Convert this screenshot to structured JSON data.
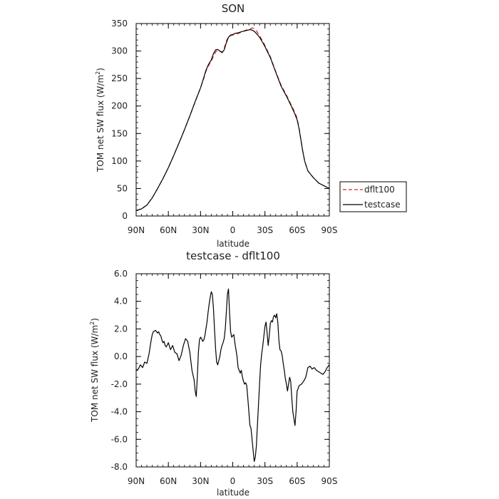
{
  "chart_data": [
    {
      "type": "line",
      "title": "SON",
      "xlabel": "latitude",
      "ylabel": "TOM net SW flux (W/m²)",
      "xlim": [
        -90,
        90
      ],
      "ylim": [
        0,
        350
      ],
      "xticks": [
        -90,
        -60,
        -30,
        0,
        30,
        60,
        90
      ],
      "xtick_labels": [
        "90N",
        "60N",
        "30N",
        "0",
        "30S",
        "60S",
        "90S"
      ],
      "yticks": [
        0,
        50,
        100,
        150,
        200,
        250,
        300,
        350
      ],
      "ytick_labels": [
        "0",
        "50",
        "100",
        "150",
        "200",
        "250",
        "300",
        "350"
      ],
      "legend": {
        "placement": "right",
        "entries": [
          {
            "label": "dflt100",
            "color": "#d62728",
            "dash": "dashed"
          },
          {
            "label": "testcase",
            "color": "#000000",
            "dash": "solid"
          }
        ]
      },
      "series": [
        {
          "name": "dflt100",
          "color": "#d62728",
          "dash": "dashed",
          "x": [
            -90,
            -85,
            -80,
            -75,
            -70,
            -65,
            -60,
            -55,
            -50,
            -45,
            -40,
            -35,
            -30,
            -27,
            -25,
            -23,
            -20,
            -18,
            -16,
            -14,
            -12,
            -10,
            -8,
            -6,
            -4,
            -2,
            0,
            2,
            5,
            8,
            10,
            12,
            14,
            16,
            18,
            20,
            22,
            25,
            28,
            30,
            35,
            40,
            45,
            50,
            55,
            58,
            60,
            62,
            65,
            67,
            70,
            75,
            80,
            85,
            90
          ],
          "y": [
            10,
            13,
            20,
            33,
            50,
            68,
            88,
            110,
            133,
            157,
            182,
            208,
            233,
            250,
            263,
            272,
            282,
            290,
            298,
            302,
            300,
            298,
            305,
            318,
            326,
            328,
            329,
            330,
            332,
            334,
            336,
            338,
            339,
            340,
            342,
            341,
            337,
            328,
            318,
            310,
            290,
            263,
            238,
            220,
            200,
            188,
            178,
            158,
            120,
            100,
            82,
            70,
            60,
            55,
            50
          ]
        },
        {
          "name": "testcase",
          "color": "#000000",
          "dash": "solid",
          "x": [
            -90,
            -85,
            -80,
            -75,
            -70,
            -65,
            -60,
            -55,
            -50,
            -45,
            -40,
            -35,
            -30,
            -27,
            -25,
            -23,
            -20,
            -18,
            -16,
            -14,
            -12,
            -10,
            -8,
            -6,
            -4,
            -2,
            0,
            2,
            5,
            8,
            10,
            12,
            14,
            16,
            18,
            20,
            22,
            25,
            28,
            30,
            35,
            40,
            45,
            50,
            55,
            58,
            60,
            62,
            65,
            67,
            70,
            75,
            80,
            85,
            90
          ],
          "y": [
            10,
            13,
            20,
            33,
            50,
            68,
            88,
            110,
            133,
            157,
            182,
            208,
            233,
            252,
            265,
            274,
            284,
            295,
            302,
            303,
            300,
            297,
            302,
            315,
            325,
            329,
            330,
            332,
            333,
            335,
            336,
            337,
            338,
            339,
            338,
            336,
            332,
            325,
            315,
            308,
            288,
            262,
            236,
            218,
            198,
            185,
            175,
            157,
            120,
            100,
            82,
            70,
            60,
            55,
            50
          ]
        }
      ]
    },
    {
      "type": "line",
      "title": "testcase - dflt100",
      "xlabel": "latitude",
      "ylabel": "TOM net SW flux (W/m²)",
      "xlim": [
        -90,
        90
      ],
      "ylim": [
        -8,
        6
      ],
      "xticks": [
        -90,
        -60,
        -30,
        0,
        30,
        60,
        90
      ],
      "xtick_labels": [
        "90N",
        "60N",
        "30N",
        "0",
        "30S",
        "60S",
        "90S"
      ],
      "yticks": [
        -8,
        -6,
        -4,
        -2,
        0,
        2,
        4,
        6
      ],
      "ytick_labels": [
        "-8.0",
        "-6.0",
        "-4.0",
        "-2.0",
        "0.0",
        "2.0",
        "4.0",
        "6.0"
      ],
      "series": [
        {
          "color": "#000000",
          "dash": "solid",
          "x": [
            -90,
            -88,
            -86,
            -84,
            -82,
            -80,
            -78,
            -76,
            -75,
            -74,
            -72,
            -71,
            -70,
            -69,
            -68,
            -67,
            -66,
            -65,
            -64,
            -63,
            -62,
            -60,
            -58,
            -56,
            -54,
            -52,
            -50,
            -48,
            -46,
            -44,
            -42,
            -40,
            -38,
            -36,
            -35,
            -34,
            -33,
            -32,
            -31,
            -30,
            -29,
            -28,
            -27,
            -26,
            -25,
            -24,
            -23,
            -22,
            -21,
            -20,
            -19,
            -18,
            -17,
            -16,
            -15,
            -14,
            -13,
            -12,
            -11,
            -10,
            -9,
            -8,
            -7,
            -6,
            -5,
            -4,
            -3,
            -2,
            -1,
            0,
            1,
            2,
            3,
            4,
            5,
            6,
            7,
            8,
            9,
            10,
            11,
            12,
            13,
            14,
            15,
            16,
            17,
            18,
            19,
            20,
            21,
            22,
            23,
            24,
            25,
            26,
            27,
            28,
            29,
            30,
            31,
            32,
            33,
            34,
            35,
            36,
            37,
            38,
            39,
            40,
            41,
            42,
            43,
            44,
            45,
            46,
            47,
            48,
            49,
            50,
            51,
            52,
            53,
            54,
            55,
            56,
            57,
            58,
            59,
            60,
            62,
            64,
            66,
            68,
            70,
            72,
            74,
            76,
            78,
            80,
            82,
            84,
            86,
            88,
            90
          ],
          "y": [
            -1.0,
            -0.9,
            -0.6,
            -0.8,
            -0.4,
            -0.5,
            0.2,
            1.2,
            1.6,
            1.8,
            1.9,
            1.8,
            1.7,
            1.8,
            1.6,
            1.5,
            1.2,
            1.0,
            1.1,
            0.8,
            0.7,
            1.0,
            0.5,
            0.8,
            0.3,
            0.2,
            -0.3,
            0.1,
            0.8,
            1.3,
            1.1,
            0.3,
            -1.0,
            -1.7,
            -2.5,
            -2.9,
            -1.5,
            0.3,
            1.2,
            1.4,
            1.3,
            1.1,
            1.2,
            1.5,
            2.0,
            2.5,
            3.2,
            3.8,
            4.3,
            4.7,
            4.5,
            3.5,
            2.0,
            0.6,
            -0.4,
            -0.6,
            -0.3,
            0.0,
            0.5,
            0.8,
            1.0,
            1.3,
            2.0,
            3.2,
            4.5,
            4.9,
            3.2,
            1.8,
            1.4,
            1.5,
            1.6,
            1.0,
            0.5,
            0.0,
            -0.8,
            -1.0,
            -1.2,
            -1.0,
            -1.5,
            -1.8,
            -2.0,
            -1.9,
            -2.1,
            -3.0,
            -4.0,
            -5.0,
            -5.2,
            -6.0,
            -6.8,
            -7.6,
            -7.3,
            -6.5,
            -5.0,
            -3.5,
            -2.0,
            -0.6,
            0.2,
            0.8,
            1.5,
            2.2,
            2.5,
            1.7,
            0.8,
            1.5,
            2.4,
            2.6,
            2.5,
            2.9,
            3.0,
            2.8,
            3.1,
            2.5,
            1.2,
            0.5,
            0.4,
            0.1,
            -0.5,
            -1.0,
            -1.6,
            -2.0,
            -2.5,
            -2.0,
            -1.5,
            -1.8,
            -3.0,
            -4.0,
            -4.5,
            -5.0,
            -4.0,
            -2.5,
            -2.1,
            -2.0,
            -1.8,
            -1.5,
            -0.8,
            -0.7,
            -0.9,
            -0.8,
            -1.0,
            -1.1,
            -1.2,
            -1.3,
            -1.1,
            -0.8,
            -0.6
          ]
        }
      ]
    }
  ]
}
